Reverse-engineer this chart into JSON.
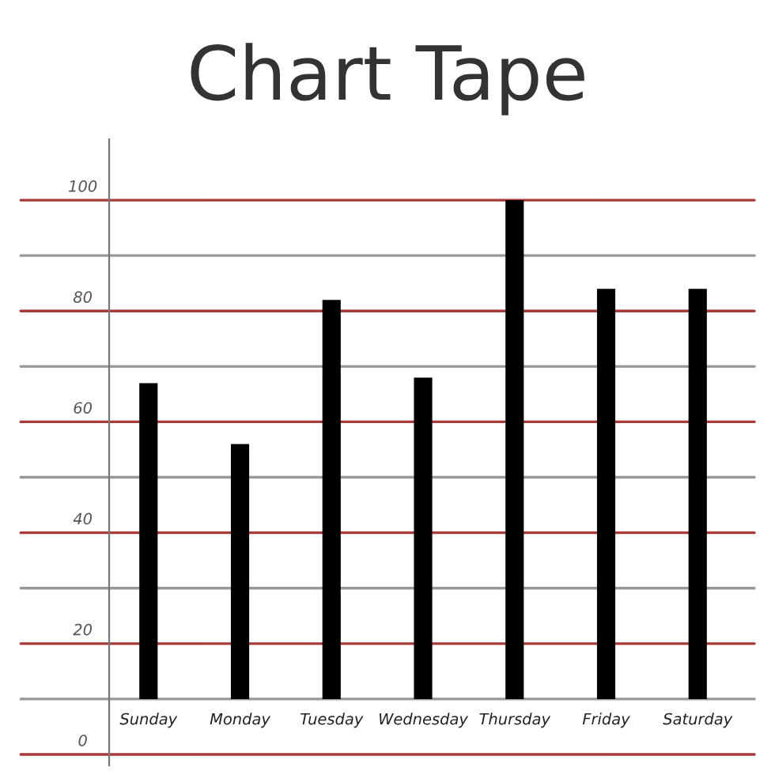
{
  "chart_data": {
    "type": "bar",
    "title": "Chart Tape",
    "categories": [
      "Sunday",
      "Monday",
      "Tuesday",
      "Wednesday",
      "Thursday",
      "Friday",
      "Saturday"
    ],
    "base": [
      10,
      10,
      10,
      10,
      10,
      10,
      10
    ],
    "values": [
      57,
      46,
      72,
      58,
      90,
      74,
      74
    ],
    "color": "#000000",
    "ylim": [
      -2,
      111
    ],
    "yticks": [
      0,
      {
        "value": 10,
        "label": null
      },
      20,
      {
        "value": 30,
        "label": null
      },
      40,
      {
        "value": 50,
        "label": null
      },
      60,
      {
        "value": 70,
        "label": null
      },
      80,
      {
        "value": 90,
        "label": null
      },
      100
    ],
    "grid": true
  }
}
